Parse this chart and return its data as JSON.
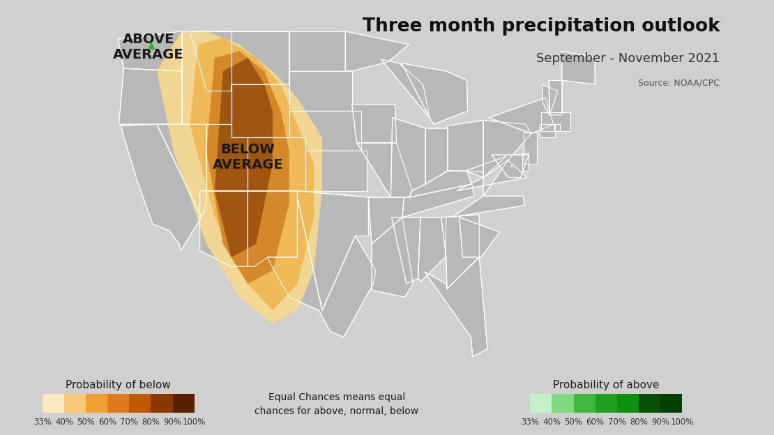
{
  "title": "Three month precipitation outlook",
  "subtitle": "September - November 2021",
  "source": "Source: NOAA/CPC",
  "above_label": "ABOVE\nAVERAGE",
  "below_label": "BELOW\nAVERAGE",
  "background_color": "#d0d0d0",
  "map_face_color": "#b8b8b8",
  "state_edge_color": "#ffffff",
  "title_color": "#111111",
  "subtitle_color": "#333333",
  "source_color": "#555555",
  "above_arrow_color": "#22bb22",
  "label_color": "#1a1a1a",
  "below_colors": [
    "#fce8c0",
    "#f9c878",
    "#f0a030",
    "#e07820",
    "#c05800",
    "#8b3800",
    "#5a2000"
  ],
  "above_colors": [
    "#c8f0c8",
    "#80d880",
    "#40b840",
    "#20a020",
    "#109010",
    "#085008",
    "#044004"
  ],
  "legend_ticks": [
    "33%",
    "40%",
    "50%",
    "60%",
    "70%",
    "80%",
    "90%",
    "100%"
  ],
  "legend_below_label": "Probability of below",
  "legend_above_label": "Probability of above",
  "legend_equal_text": "Equal Chances means equal\nchances for above, normal, below",
  "zone1_color": "#f7d890",
  "zone2_color": "#f0b855",
  "zone3_color": "#d4882a",
  "zone4_color": "#a05510"
}
